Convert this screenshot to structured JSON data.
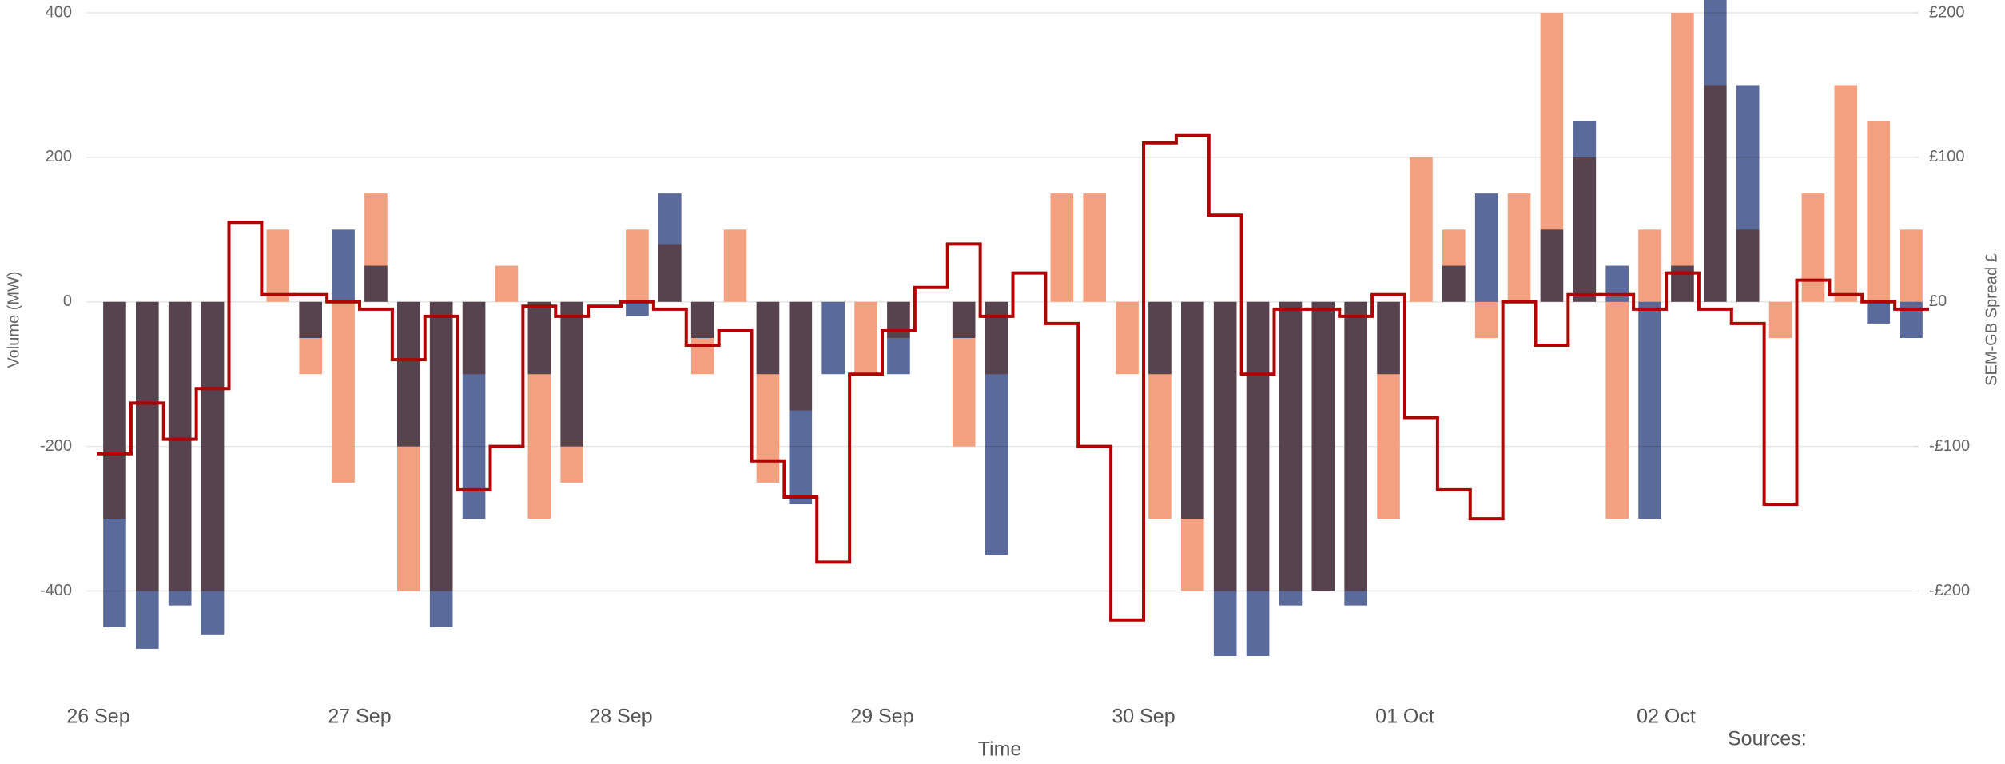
{
  "chart_data": {
    "type": "bar",
    "x_label": "Time",
    "y_label": "Volume (MW)",
    "y2_label": "SEM-GB Spread £",
    "note": "Sources:",
    "categories": [
      "26 Sep",
      null,
      null,
      null,
      null,
      null,
      null,
      null,
      "27 Sep",
      null,
      null,
      null,
      null,
      null,
      null,
      null,
      "28 Sep",
      null,
      null,
      null,
      null,
      null,
      null,
      null,
      "29 Sep",
      null,
      null,
      null,
      null,
      null,
      null,
      null,
      "30 Sep",
      null,
      null,
      null,
      null,
      null,
      null,
      null,
      "01 Oct",
      null,
      null,
      null,
      null,
      null,
      null,
      null,
      "02 Oct",
      null,
      null,
      null,
      null,
      null,
      null,
      null
    ],
    "ylim": [
      -500,
      400
    ],
    "yticks": [
      400,
      200,
      0,
      -200,
      -400
    ],
    "y2lim": [
      -250,
      200
    ],
    "y2ticks": [
      {
        "value": 200,
        "label": "£200"
      },
      {
        "value": 100,
        "label": "£100"
      },
      {
        "value": 0,
        "label": "£0"
      },
      {
        "value": -100,
        "label": "-£100"
      },
      {
        "value": -200,
        "label": "-£200"
      }
    ],
    "grid": true,
    "series": [
      {
        "color": "#f2a080",
        "values": [
          -300,
          -400,
          -400,
          -400,
          0,
          100,
          -100,
          -250,
          150,
          -400,
          -400,
          -100,
          50,
          -300,
          -250,
          0,
          100,
          80,
          -100,
          100,
          -250,
          -150,
          0,
          -100,
          -50,
          0,
          -200,
          -100,
          0,
          150,
          150,
          -100,
          -300,
          -400,
          -400,
          -400,
          -400,
          -400,
          -400,
          -300,
          200,
          100,
          -50,
          150,
          400,
          200,
          -300,
          100,
          400,
          300,
          100,
          -50,
          150,
          300,
          250,
          100
        ]
      },
      {
        "color": "#5a6a9a",
        "values": [
          -450,
          -480,
          -420,
          -460,
          0,
          0,
          -50,
          100,
          50,
          -200,
          -450,
          -300,
          0,
          -100,
          -200,
          0,
          -20,
          150,
          -50,
          0,
          -100,
          -280,
          -100,
          0,
          -100,
          0,
          -50,
          -350,
          0,
          0,
          0,
          0,
          -100,
          -300,
          -490,
          -490,
          -420,
          -400,
          -420,
          -100,
          0,
          50,
          150,
          0,
          100,
          250,
          50,
          -300,
          50,
          420,
          300,
          0,
          0,
          0,
          -30,
          -50
        ]
      },
      {
        "type": "line",
        "axis": "y2",
        "color": "#b30000",
        "values": [
          -105,
          -70,
          -95,
          -60,
          55,
          5,
          5,
          0,
          -5,
          -40,
          -10,
          -130,
          -100,
          -3,
          -10,
          -3,
          0,
          -5,
          -30,
          -20,
          -110,
          -135,
          -180,
          -50,
          -20,
          10,
          40,
          -10,
          20,
          -15,
          -100,
          -220,
          110,
          115,
          60,
          -50,
          -5,
          -5,
          -10,
          5,
          -80,
          -130,
          -150,
          0,
          -30,
          5,
          5,
          -5,
          20,
          -5,
          -15,
          -140,
          15,
          5,
          0,
          -5
        ]
      }
    ]
  }
}
